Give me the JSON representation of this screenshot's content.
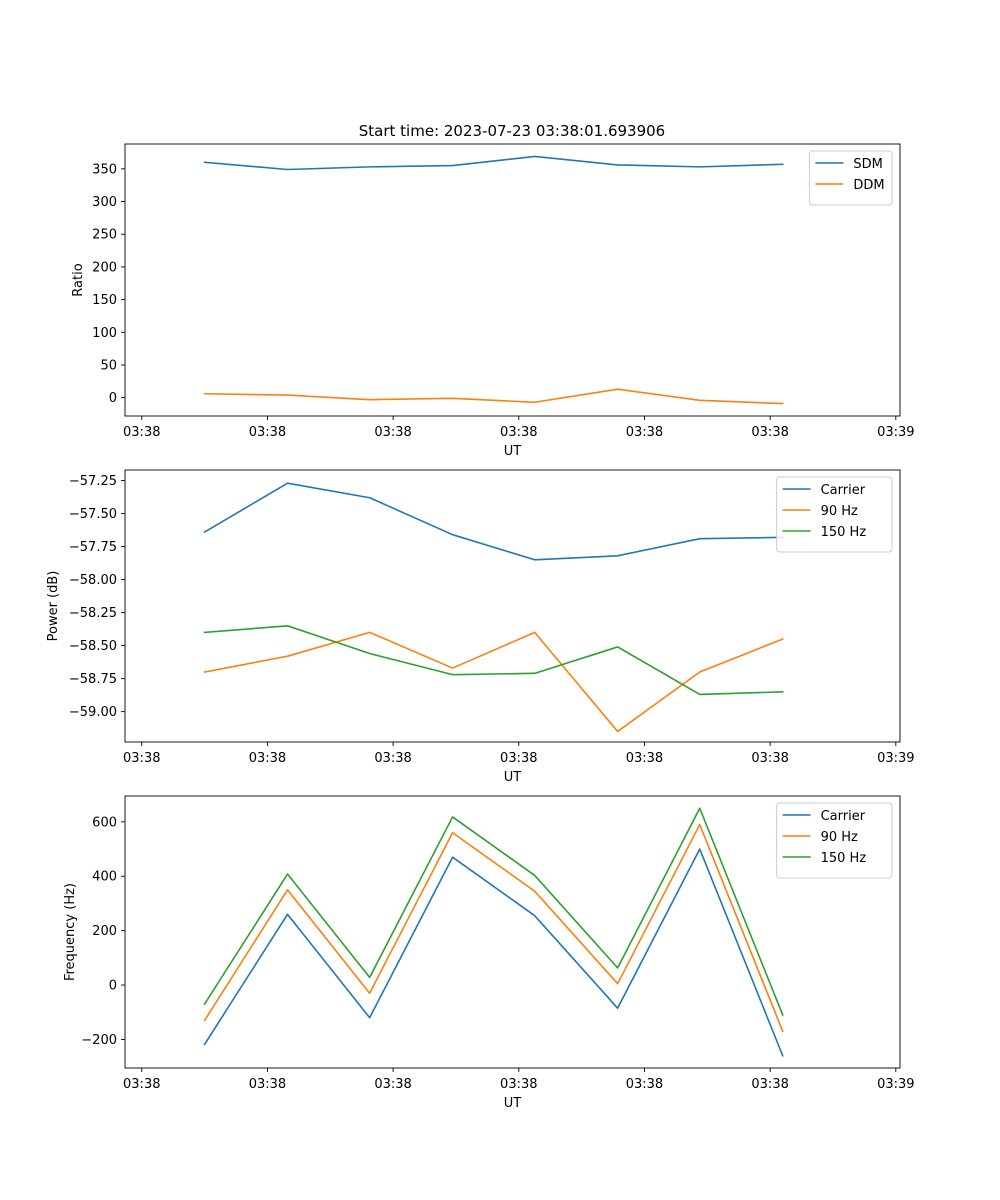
{
  "title": "Start time: 2023-07-23 03:38:01.693906",
  "colors": {
    "blue": "#1f77b4",
    "orange": "#ff7f0e",
    "green": "#2ca02c"
  },
  "chart_data": [
    {
      "type": "line",
      "id": "ratio",
      "ylabel": "Ratio",
      "xlabel": "UT",
      "xlim": [
        -0.2,
        9.05
      ],
      "ylim": [
        -28,
        388
      ],
      "xticks": [
        0,
        1.5,
        3,
        4.5,
        6,
        7.5,
        9
      ],
      "xtick_labels": [
        "03:38",
        "03:38",
        "03:38",
        "03:38",
        "03:38",
        "03:38",
        "03:39"
      ],
      "yticks": [
        0,
        50,
        100,
        150,
        200,
        250,
        300,
        350
      ],
      "ytick_labels": [
        "0",
        "50",
        "100",
        "150",
        "200",
        "250",
        "300",
        "350"
      ],
      "legend": "upper right",
      "x": [
        0.75,
        1.74,
        2.72,
        3.71,
        4.69,
        5.68,
        6.66,
        7.65
      ],
      "series": [
        {
          "name": "SDM",
          "color": "#1f77b4",
          "values": [
            360,
            349,
            353,
            355,
            369,
            356,
            353,
            357
          ]
        },
        {
          "name": "DDM",
          "color": "#ff7f0e",
          "values": [
            6,
            4,
            -3,
            -1,
            -7,
            13,
            -4,
            -9
          ]
        }
      ]
    },
    {
      "type": "line",
      "id": "power",
      "ylabel": "Power (dB)",
      "xlabel": "UT",
      "xlim": [
        -0.2,
        9.05
      ],
      "ylim": [
        -59.23,
        -57.17
      ],
      "xticks": [
        0,
        1.5,
        3,
        4.5,
        6,
        7.5,
        9
      ],
      "xtick_labels": [
        "03:38",
        "03:38",
        "03:38",
        "03:38",
        "03:38",
        "03:38",
        "03:39"
      ],
      "yticks": [
        -59.0,
        -58.75,
        -58.5,
        -58.25,
        -58.0,
        -57.75,
        -57.5,
        -57.25
      ],
      "ytick_labels": [
        "−59.00",
        "−58.75",
        "−58.50",
        "−58.25",
        "−58.00",
        "−57.75",
        "−57.50",
        "−57.25"
      ],
      "legend": "upper right",
      "x": [
        0.75,
        1.74,
        2.72,
        3.71,
        4.69,
        5.68,
        6.66,
        7.65
      ],
      "series": [
        {
          "name": "Carrier",
          "color": "#1f77b4",
          "values": [
            -57.64,
            -57.27,
            -57.38,
            -57.66,
            -57.85,
            -57.82,
            -57.69,
            -57.68
          ]
        },
        {
          "name": "90 Hz",
          "color": "#ff7f0e",
          "values": [
            -58.7,
            -58.58,
            -58.4,
            -58.67,
            -58.4,
            -59.15,
            -58.7,
            -58.45
          ]
        },
        {
          "name": "150 Hz",
          "color": "#2ca02c",
          "values": [
            -58.4,
            -58.35,
            -58.56,
            -58.72,
            -58.71,
            -58.51,
            -58.87,
            -58.85
          ]
        }
      ]
    },
    {
      "type": "line",
      "id": "frequency",
      "ylabel": "Frequency (Hz)",
      "xlabel": "UT",
      "xlim": [
        -0.2,
        9.05
      ],
      "ylim": [
        -305,
        695
      ],
      "xticks": [
        0,
        1.5,
        3,
        4.5,
        6,
        7.5,
        9
      ],
      "xtick_labels": [
        "03:38",
        "03:38",
        "03:38",
        "03:38",
        "03:38",
        "03:38",
        "03:39"
      ],
      "yticks": [
        -200,
        0,
        200,
        400,
        600
      ],
      "ytick_labels": [
        "−200",
        "0",
        "200",
        "400",
        "600"
      ],
      "legend": "upper right",
      "x": [
        0.75,
        1.74,
        2.72,
        3.71,
        4.69,
        5.68,
        6.66,
        7.65
      ],
      "series": [
        {
          "name": "Carrier",
          "color": "#1f77b4",
          "values": [
            -218,
            260,
            -120,
            470,
            255,
            -85,
            500,
            -260
          ]
        },
        {
          "name": "90 Hz",
          "color": "#ff7f0e",
          "values": [
            -130,
            350,
            -30,
            560,
            345,
            5,
            590,
            -170
          ]
        },
        {
          "name": "150 Hz",
          "color": "#2ca02c",
          "values": [
            -70,
            408,
            28,
            618,
            403,
            63,
            650,
            -110
          ]
        }
      ]
    }
  ]
}
